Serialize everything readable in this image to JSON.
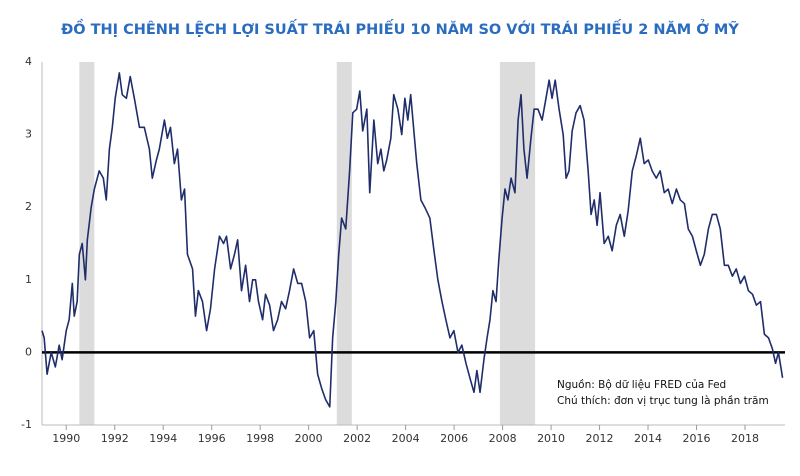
{
  "chart_data": {
    "type": "line",
    "title": "ĐỒ THỊ CHÊNH LỆCH LỢI SUẤT TRÁI PHIẾU 10 NĂM SO VỚI TRÁI PHIẾU 2 NĂM Ở MỸ",
    "annotations": [
      "Nguồn: Bộ dữ liệu FRED của Fed",
      "Chú thích: đơn vị trục tung là phần trăm"
    ],
    "color": "#1f2d6b",
    "shade_color": "#dcdcdc",
    "hline": 0,
    "shaded_ranges": [
      [
        1990.54,
        1991.16
      ],
      [
        2001.16,
        2001.78
      ],
      [
        2007.89,
        2009.34
      ]
    ],
    "xlim": [
      1989.0,
      2019.65
    ],
    "xticks": [
      1990,
      1992,
      1994,
      1996,
      1998,
      2000,
      2002,
      2004,
      2006,
      2008,
      2010,
      2012,
      2014,
      2016,
      2018
    ],
    "ylim": [
      -1,
      4
    ],
    "yticks": [
      -1,
      0,
      1,
      2,
      3,
      4
    ],
    "x": [
      1989.0,
      1989.09,
      1989.21,
      1989.38,
      1989.55,
      1989.71,
      1989.83,
      1990.0,
      1990.12,
      1990.25,
      1990.33,
      1990.45,
      1990.54,
      1990.66,
      1990.79,
      1990.87,
      1991.03,
      1991.16,
      1991.36,
      1991.53,
      1991.65,
      1991.78,
      1991.9,
      1992.02,
      1992.19,
      1992.31,
      1992.48,
      1992.64,
      1992.81,
      1993.02,
      1993.22,
      1993.43,
      1993.55,
      1993.72,
      1993.84,
      1994.05,
      1994.17,
      1994.3,
      1994.46,
      1994.59,
      1994.75,
      1994.88,
      1995.0,
      1995.21,
      1995.33,
      1995.45,
      1995.62,
      1995.79,
      1995.95,
      1996.12,
      1996.32,
      1996.49,
      1996.61,
      1996.78,
      1996.94,
      1997.07,
      1997.23,
      1997.4,
      1997.56,
      1997.69,
      1997.81,
      1997.93,
      1998.1,
      1998.22,
      1998.39,
      1998.55,
      1998.72,
      1998.88,
      1999.05,
      1999.21,
      1999.38,
      1999.55,
      1999.71,
      1999.88,
      2000.04,
      2000.21,
      2000.37,
      2000.54,
      2000.7,
      2000.87,
      2000.99,
      2001.12,
      2001.24,
      2001.36,
      2001.53,
      2001.69,
      2001.82,
      2001.98,
      2002.11,
      2002.23,
      2002.4,
      2002.52,
      2002.69,
      2002.85,
      2002.98,
      2003.1,
      2003.22,
      2003.39,
      2003.51,
      2003.68,
      2003.84,
      2003.97,
      2004.09,
      2004.21,
      2004.34,
      2004.46,
      2004.63,
      2004.79,
      2005.0,
      2005.17,
      2005.33,
      2005.5,
      2005.66,
      2005.83,
      2005.99,
      2006.16,
      2006.32,
      2006.49,
      2006.65,
      2006.82,
      2006.94,
      2007.07,
      2007.23,
      2007.36,
      2007.48,
      2007.6,
      2007.73,
      2007.85,
      2007.98,
      2008.1,
      2008.22,
      2008.35,
      2008.51,
      2008.64,
      2008.76,
      2008.88,
      2009.01,
      2009.17,
      2009.3,
      2009.46,
      2009.63,
      2009.79,
      2009.92,
      2010.04,
      2010.17,
      2010.33,
      2010.5,
      2010.62,
      2010.74,
      2010.87,
      2011.03,
      2011.2,
      2011.36,
      2011.53,
      2011.65,
      2011.78,
      2011.9,
      2012.02,
      2012.19,
      2012.36,
      2012.52,
      2012.69,
      2012.85,
      2013.02,
      2013.18,
      2013.35,
      2013.51,
      2013.68,
      2013.84,
      2014.01,
      2014.17,
      2014.34,
      2014.5,
      2014.67,
      2014.83,
      2015.0,
      2015.17,
      2015.33,
      2015.5,
      2015.66,
      2015.83,
      2015.99,
      2016.16,
      2016.32,
      2016.49,
      2016.65,
      2016.82,
      2016.98,
      2017.15,
      2017.31,
      2017.48,
      2017.64,
      2017.81,
      2017.98,
      2018.14,
      2018.31,
      2018.47,
      2018.64,
      2018.8,
      2018.97,
      2019.13,
      2019.26,
      2019.38,
      2019.55
    ],
    "values": [
      0.3,
      0.2,
      -0.3,
      0,
      -0.2,
      0.1,
      -0.1,
      0.3,
      0.45,
      0.95,
      0.5,
      0.7,
      1.35,
      1.5,
      1.0,
      1.55,
      2.0,
      2.25,
      2.5,
      2.4,
      2.1,
      2.8,
      3.1,
      3.5,
      3.85,
      3.55,
      3.5,
      3.8,
      3.5,
      3.1,
      3.1,
      2.8,
      2.4,
      2.65,
      2.8,
      3.2,
      2.95,
      3.1,
      2.6,
      2.8,
      2.1,
      2.25,
      1.35,
      1.15,
      0.5,
      0.85,
      0.7,
      0.3,
      0.6,
      1.15,
      1.6,
      1.5,
      1.6,
      1.15,
      1.35,
      1.55,
      0.85,
      1.2,
      0.7,
      1.0,
      1.0,
      0.7,
      0.45,
      0.8,
      0.65,
      0.3,
      0.45,
      0.7,
      0.6,
      0.85,
      1.15,
      0.95,
      0.95,
      0.7,
      0.2,
      0.3,
      -0.3,
      -0.5,
      -0.65,
      -0.75,
      0.2,
      0.7,
      1.35,
      1.85,
      1.7,
      2.5,
      3.3,
      3.35,
      3.6,
      3.05,
      3.35,
      2.2,
      3.2,
      2.6,
      2.8,
      2.5,
      2.65,
      2.95,
      3.55,
      3.35,
      3.0,
      3.5,
      3.2,
      3.55,
      3.05,
      2.6,
      2.1,
      2.0,
      1.85,
      1.4,
      1.0,
      0.7,
      0.45,
      0.2,
      0.3,
      0,
      0.1,
      -0.15,
      -0.35,
      -0.55,
      -0.25,
      -0.55,
      -0.1,
      0.2,
      0.45,
      0.85,
      0.7,
      1.3,
      1.85,
      2.25,
      2.1,
      2.4,
      2.2,
      3.2,
      3.55,
      2.8,
      2.4,
      2.95,
      3.35,
      3.35,
      3.2,
      3.5,
      3.75,
      3.5,
      3.75,
      3.35,
      3.0,
      2.4,
      2.5,
      3.05,
      3.3,
      3.4,
      3.2,
      2.5,
      1.9,
      2.1,
      1.75,
      2.2,
      1.5,
      1.6,
      1.4,
      1.75,
      1.9,
      1.6,
      1.95,
      2.5,
      2.7,
      2.95,
      2.6,
      2.65,
      2.5,
      2.4,
      2.5,
      2.2,
      2.25,
      2.05,
      2.25,
      2.1,
      2.05,
      1.7,
      1.6,
      1.4,
      1.2,
      1.35,
      1.7,
      1.9,
      1.9,
      1.7,
      1.2,
      1.2,
      1.05,
      1.15,
      0.95,
      1.05,
      0.85,
      0.8,
      0.65,
      0.7,
      0.25,
      0.2,
      0.05,
      -0.15,
      0,
      -0.35
    ]
  }
}
